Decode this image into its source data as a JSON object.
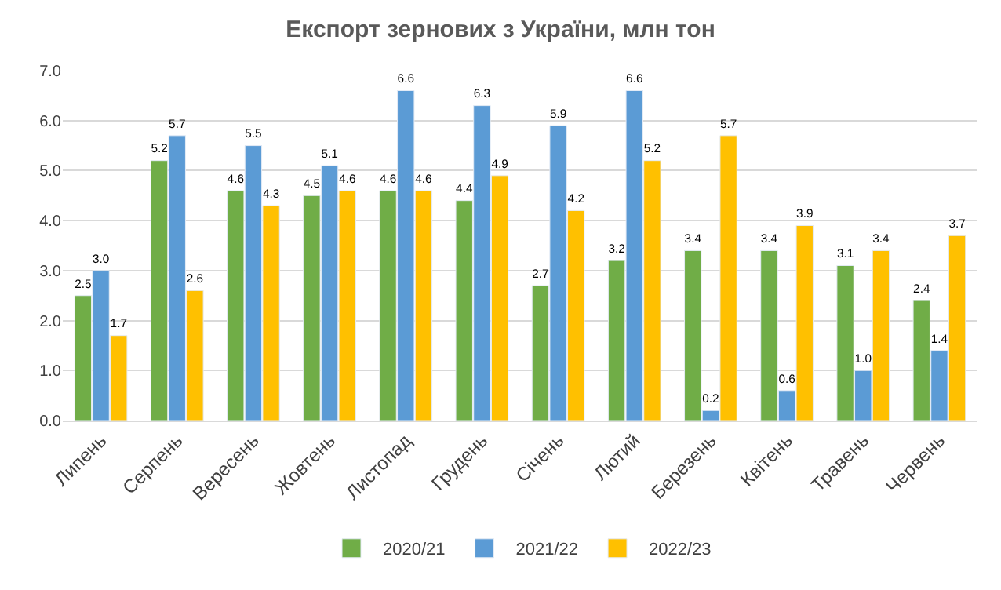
{
  "chart_data": {
    "type": "bar",
    "title": "Експорт зернових з України, млн тон",
    "categories": [
      "Липень",
      "Серпень",
      "Вересень",
      "Жовтень",
      "Листопад",
      "Грудень",
      "Січень",
      "Лютий",
      "Березень",
      "Квітень",
      "Травень",
      "Червень"
    ],
    "series": [
      {
        "name": "2020/21",
        "color": "#70ad47",
        "values": [
          2.5,
          5.2,
          4.6,
          4.5,
          4.6,
          4.4,
          2.7,
          3.2,
          3.4,
          3.4,
          3.1,
          2.4
        ],
        "value_labels": [
          "2.5",
          "5.2",
          "4.6",
          "4.5",
          "4.6",
          "4.4",
          "2.7",
          "3.2",
          "3.4",
          "3.4",
          "3.1",
          "2.4"
        ]
      },
      {
        "name": "2021/22",
        "color": "#5b9bd5",
        "values": [
          3.0,
          5.7,
          5.5,
          5.1,
          6.6,
          6.3,
          5.9,
          6.6,
          0.2,
          0.6,
          1.0,
          1.4
        ],
        "value_labels": [
          "3.0",
          "5.7",
          "5.5",
          "5.1",
          "6.6",
          "6.3",
          "5.9",
          "6.6",
          "0.2",
          "0.6",
          "1.0",
          "1.4"
        ]
      },
      {
        "name": "2022/23",
        "color": "#ffc000",
        "values": [
          1.7,
          2.6,
          4.3,
          4.6,
          4.6,
          4.9,
          4.2,
          5.2,
          5.7,
          3.9,
          3.4,
          3.7
        ],
        "value_labels": [
          "1.7",
          "2.6",
          "4.3",
          "4.6",
          "4.6",
          "4.9",
          "4.2",
          "5.2",
          "5.7",
          "3.9",
          "3.4",
          "3.7"
        ]
      }
    ],
    "ylim": [
      0,
      7
    ],
    "yticks": [
      {
        "value": 0,
        "label": "0.0"
      },
      {
        "value": 1,
        "label": "1.0"
      },
      {
        "value": 2,
        "label": "2.0"
      },
      {
        "value": 3,
        "label": "3.0"
      },
      {
        "value": 4,
        "label": "4.0"
      },
      {
        "value": 5,
        "label": "5.0"
      },
      {
        "value": 6,
        "label": "6.0"
      },
      {
        "value": 7,
        "label": "7.0"
      }
    ],
    "grid": "y",
    "legend": "bottom"
  }
}
